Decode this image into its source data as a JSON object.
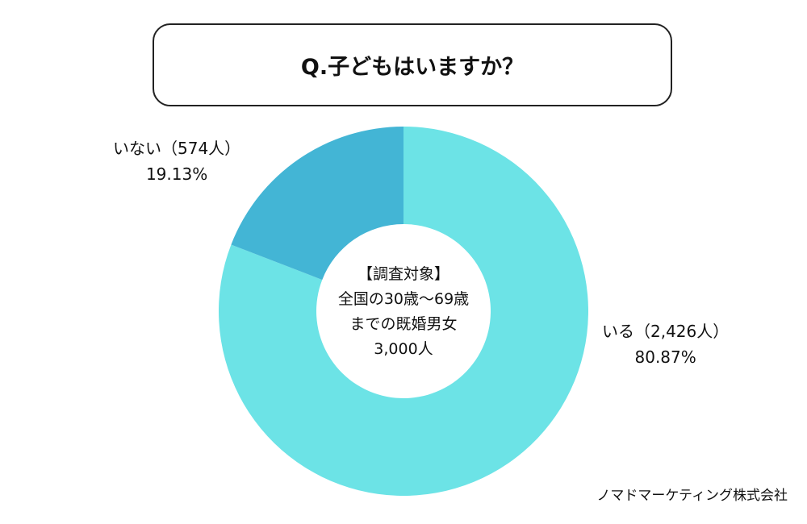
{
  "title": "Q.子どもはいますか？",
  "center_text": [
    "【調査対象】",
    "全国の30歳〜69歳",
    "までの既婚男女",
    "3,000人"
  ],
  "credit": "ノマドマーケティング株式会社",
  "chart_data": {
    "type": "pie",
    "donut": true,
    "title": "Q.子どもはいますか？",
    "slices": [
      {
        "name": "いる",
        "count_label": "いる（2,426人）",
        "pct_label": "80.87%",
        "value": 80.87,
        "count": 2426,
        "color": "#6ce3e6"
      },
      {
        "name": "いない",
        "count_label": "いない（574人）",
        "pct_label": "19.13%",
        "value": 19.13,
        "count": 574,
        "color": "#43b5d5"
      }
    ],
    "total": 3000
  }
}
